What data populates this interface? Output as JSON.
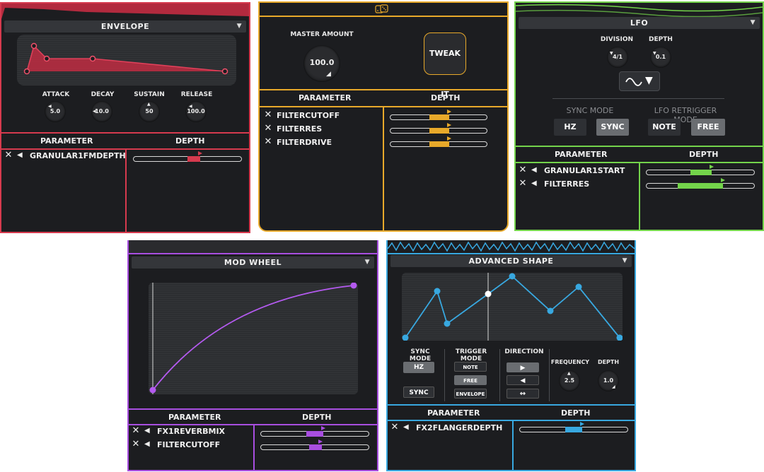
{
  "envelope": {
    "title": "ENVELOPE",
    "accent": "#d63a4e",
    "knobs": [
      {
        "label": "ATTACK",
        "value": "5.0"
      },
      {
        "label": "DECAY",
        "value": "10.0"
      },
      {
        "label": "SUSTAIN",
        "value": "50"
      },
      {
        "label": "RELEASE",
        "value": "100.0"
      }
    ],
    "table": {
      "param_header": "PARAMETER",
      "depth_header": "DEPTH"
    },
    "rows": [
      {
        "name": "GRANULAR1FMDEPTH",
        "depth": 0.55
      }
    ]
  },
  "randomizer": {
    "icon": "dice-icon",
    "accent": "#e8a92a",
    "master_label": "MASTER AMOUNT",
    "master_value": "100.0",
    "tweak_label": "TWEAK IT",
    "table": {
      "param_header": "PARAMETER",
      "depth_header": "DEPTH"
    },
    "rows": [
      {
        "name": "FILTERCUTOFF",
        "depth": 0.6
      },
      {
        "name": "FILTERRES",
        "depth": 0.6
      },
      {
        "name": "FILTERDRIVE",
        "depth": 0.6
      }
    ]
  },
  "lfo": {
    "title": "LFO",
    "accent": "#74d44b",
    "division_label": "DIVISION",
    "division_value": "4/1",
    "depth_label": "DEPTH",
    "depth_value": "0.1",
    "wave_icon": "sine-wave-icon",
    "sync_mode_label": "SYNC MODE",
    "sync_options": [
      "HZ",
      "SYNC"
    ],
    "sync_selected": "SYNC",
    "retrigger_label": "LFO RETRIGGER MODE",
    "retrigger_options": [
      "NOTE",
      "FREE"
    ],
    "retrigger_selected": "FREE",
    "table": {
      "param_header": "PARAMETER",
      "depth_header": "DEPTH"
    },
    "rows": [
      {
        "name": "GRANULAR1START",
        "depth": 0.6
      },
      {
        "name": "FILTERRES",
        "depth": 0.75
      }
    ]
  },
  "modwheel": {
    "title": "MOD WHEEL",
    "accent": "#a84ee0",
    "table": {
      "param_header": "PARAMETER",
      "depth_header": "DEPTH"
    },
    "rows": [
      {
        "name": "FX1REVERBMIX",
        "depth": 0.6
      },
      {
        "name": "FILTERCUTOFF",
        "depth": 0.55
      }
    ]
  },
  "advanced": {
    "title": "ADVANCED SHAPE",
    "accent": "#38a8e0",
    "sync_mode_label": "SYNC MODE",
    "sync_options": [
      "HZ",
      "SYNC"
    ],
    "trigger_mode_label": "TRIGGER MODE",
    "trigger_options": [
      "NOTE",
      "FREE",
      "ENVELOPE"
    ],
    "trigger_selected": "FREE",
    "direction_label": "DIRECTION",
    "direction_icons": [
      "play-forward-icon",
      "play-reverse-icon",
      "ping-pong-icon"
    ],
    "frequency_label": "FREQUENCY",
    "frequency_value": "2.5",
    "depth_label": "DEPTH",
    "depth_value": "1.0",
    "table": {
      "param_header": "PARAMETER",
      "depth_header": "DEPTH"
    },
    "rows": [
      {
        "name": "FX2FLANGERDEPTH",
        "depth": 0.6
      }
    ]
  }
}
